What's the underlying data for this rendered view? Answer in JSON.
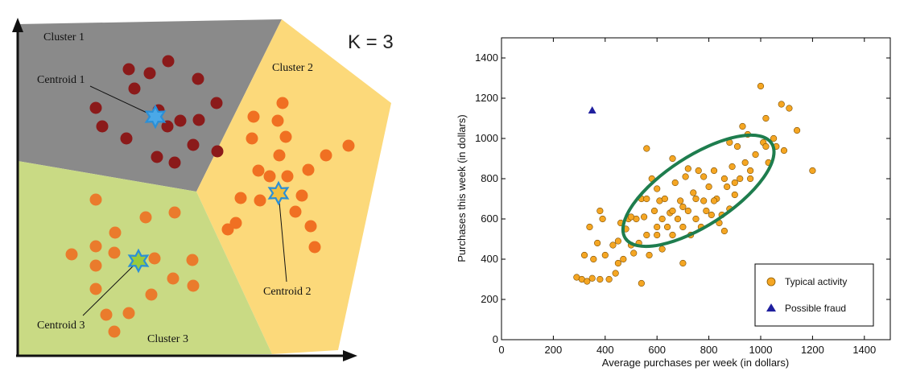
{
  "chart_data": [
    {
      "type": "scatter",
      "title": "K = 3",
      "clusters": [
        {
          "name": "Cluster 1",
          "centroid_label": "Centroid 1",
          "region_color": "#8c8c8c",
          "point_color": "#8b1a1a",
          "points": [
            [
              160,
              86
            ],
            [
              209,
              76
            ],
            [
              186,
              91
            ],
            [
              246,
              98
            ],
            [
              167,
              110
            ],
            [
              119,
              134
            ],
            [
              269,
              128
            ],
            [
              197,
              137
            ],
            [
              224,
              150
            ],
            [
              247,
              149
            ],
            [
              127,
              157
            ],
            [
              208,
              157
            ],
            [
              157,
              172
            ],
            [
              240,
              180
            ],
            [
              195,
              195
            ],
            [
              270,
              188
            ],
            [
              217,
              202
            ]
          ],
          "centroid": [
            193,
            145
          ]
        },
        {
          "name": "Cluster 2",
          "centroid_label": "Centroid 2",
          "region_color": "#fcd97a",
          "point_color": "#f07022",
          "points": [
            [
              351,
              128
            ],
            [
              315,
              145
            ],
            [
              345,
              150
            ],
            [
              313,
              172
            ],
            [
              355,
              170
            ],
            [
              433,
              181
            ],
            [
              347,
              193
            ],
            [
              405,
              193
            ],
            [
              321,
              212
            ],
            [
              335,
              219
            ],
            [
              357,
              219
            ],
            [
              383,
              211
            ],
            [
              299,
              246
            ],
            [
              323,
              249
            ],
            [
              375,
              243
            ],
            [
              367,
              263
            ],
            [
              283,
              285
            ],
            [
              386,
              281
            ],
            [
              391,
              307
            ],
            [
              293,
              277
            ]
          ],
          "centroid": [
            346,
            240
          ]
        },
        {
          "name": "Cluster 3",
          "centroid_label": "Centroid 3",
          "region_color": "#c9da84",
          "point_color": "#ea7b2c",
          "points": [
            [
              119,
              248
            ],
            [
              217,
              264
            ],
            [
              181,
              270
            ],
            [
              143,
              289
            ],
            [
              119,
              306
            ],
            [
              89,
              316
            ],
            [
              142,
              314
            ],
            [
              119,
              330
            ],
            [
              239,
              323
            ],
            [
              192,
              321
            ],
            [
              215,
              346
            ],
            [
              240,
              355
            ],
            [
              119,
              359
            ],
            [
              188,
              366
            ],
            [
              160,
              389
            ],
            [
              132,
              391
            ],
            [
              142,
              412
            ]
          ],
          "centroid": [
            172,
            324
          ]
        }
      ]
    },
    {
      "type": "scatter",
      "xlabel": "Average purchases per week (in dollars)",
      "ylabel": "Purchases this week (in dollars)",
      "xlim": [
        0,
        1500
      ],
      "ylim": [
        0,
        1500
      ],
      "xticks": [
        0,
        200,
        400,
        600,
        800,
        1000,
        1200,
        1400
      ],
      "yticks": [
        0,
        200,
        400,
        600,
        800,
        1000,
        1200,
        1400
      ],
      "legend": {
        "position": "bottom-right",
        "entries": [
          "Typical activity",
          "Possible fraud"
        ]
      },
      "series": [
        {
          "name": "Typical activity",
          "marker": "circle",
          "color": "#f5a623",
          "points": [
            [
              290,
              310
            ],
            [
              310,
              300
            ],
            [
              330,
              290
            ],
            [
              350,
              305
            ],
            [
              320,
              420
            ],
            [
              355,
              400
            ],
            [
              340,
              560
            ],
            [
              370,
              480
            ],
            [
              380,
              640
            ],
            [
              390,
              600
            ],
            [
              400,
              420
            ],
            [
              415,
              300
            ],
            [
              430,
              470
            ],
            [
              440,
              330
            ],
            [
              450,
              490
            ],
            [
              460,
              580
            ],
            [
              470,
              400
            ],
            [
              480,
              550
            ],
            [
              490,
              600
            ],
            [
              500,
              470
            ],
            [
              510,
              430
            ],
            [
              520,
              600
            ],
            [
              530,
              480
            ],
            [
              540,
              700
            ],
            [
              550,
              610
            ],
            [
              560,
              520
            ],
            [
              560,
              950
            ],
            [
              570,
              420
            ],
            [
              580,
              800
            ],
            [
              590,
              640
            ],
            [
              600,
              520
            ],
            [
              610,
              690
            ],
            [
              620,
              600
            ],
            [
              620,
              450
            ],
            [
              630,
              700
            ],
            [
              640,
              560
            ],
            [
              650,
              630
            ],
            [
              660,
              520
            ],
            [
              670,
              780
            ],
            [
              680,
              600
            ],
            [
              690,
              690
            ],
            [
              700,
              560
            ],
            [
              700,
              380
            ],
            [
              710,
              810
            ],
            [
              720,
              640
            ],
            [
              730,
              520
            ],
            [
              740,
              730
            ],
            [
              750,
              600
            ],
            [
              760,
              840
            ],
            [
              770,
              560
            ],
            [
              780,
              690
            ],
            [
              790,
              640
            ],
            [
              800,
              760
            ],
            [
              810,
              620
            ],
            [
              820,
              840
            ],
            [
              830,
              700
            ],
            [
              840,
              580
            ],
            [
              850,
              620
            ],
            [
              860,
              800
            ],
            [
              870,
              760
            ],
            [
              880,
              650
            ],
            [
              890,
              860
            ],
            [
              900,
              720
            ],
            [
              910,
              960
            ],
            [
              920,
              800
            ],
            [
              930,
              1060
            ],
            [
              940,
              880
            ],
            [
              950,
              1020
            ],
            [
              960,
              800
            ],
            [
              980,
              920
            ],
            [
              1000,
              1260
            ],
            [
              1010,
              980
            ],
            [
              1020,
              1100
            ],
            [
              1030,
              880
            ],
            [
              1050,
              1000
            ],
            [
              1060,
              960
            ],
            [
              1080,
              1170
            ],
            [
              1090,
              940
            ],
            [
              1110,
              1150
            ],
            [
              1140,
              1040
            ],
            [
              1200,
              840
            ],
            [
              600,
              750
            ],
            [
              660,
              900
            ],
            [
              720,
              850
            ],
            [
              560,
              700
            ],
            [
              880,
              980
            ],
            [
              900,
              780
            ],
            [
              780,
              810
            ],
            [
              660,
              640
            ],
            [
              600,
              560
            ],
            [
              750,
              700
            ],
            [
              820,
              690
            ],
            [
              500,
              610
            ],
            [
              450,
              380
            ],
            [
              380,
              300
            ],
            [
              540,
              280
            ],
            [
              700,
              660
            ],
            [
              960,
              840
            ],
            [
              1020,
              960
            ],
            [
              860,
              540
            ]
          ]
        },
        {
          "name": "Possible fraud",
          "marker": "triangle",
          "color": "#1f1f9e",
          "points": [
            [
              350,
              1140
            ]
          ]
        }
      ],
      "annotations": [
        {
          "shape": "ellipse",
          "color": "#1e7d4e",
          "center": [
            760,
            740
          ],
          "semi_axes": [
            580,
            310
          ],
          "angle_deg": 33
        }
      ]
    }
  ]
}
